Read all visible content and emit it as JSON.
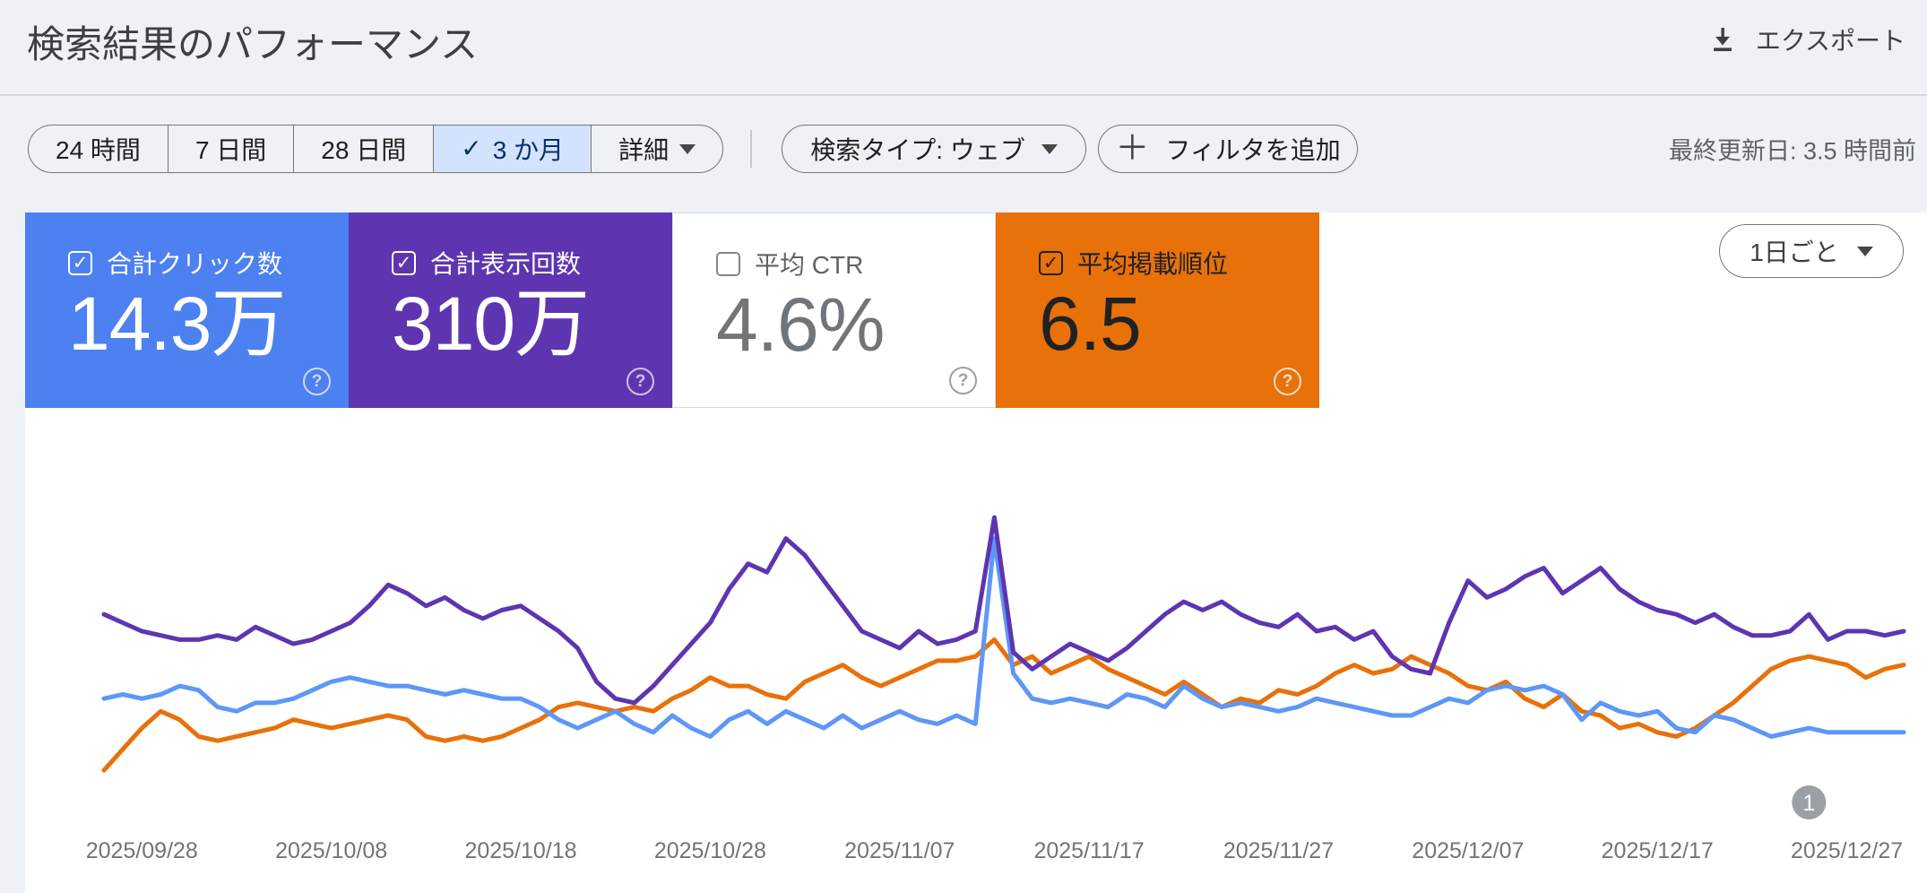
{
  "header": {
    "title": "検索結果のパフォーマンス",
    "export_label": "エクスポート"
  },
  "toolbar": {
    "date_ranges": [
      {
        "label": "24 時間",
        "selected": false
      },
      {
        "label": "7 日間",
        "selected": false
      },
      {
        "label": "28 日間",
        "selected": false
      },
      {
        "label": "3 か月",
        "selected": true
      },
      {
        "label": "詳細",
        "selected": false,
        "dropdown": true
      }
    ],
    "search_type_label": "検索タイプ: ウェブ",
    "add_filter_label": "フィルタを追加",
    "last_updated": "最終更新日: 3.5 時間前"
  },
  "icons": {
    "check": "✓",
    "plus": "＋",
    "help": "?"
  },
  "metrics": [
    {
      "label": "合計クリック数",
      "value": "14.3万",
      "checked": true,
      "card_color": "#4d80f0",
      "label_color": "#ffffff",
      "value_color": "#ffffff",
      "checkbox_color": "#ffffff",
      "help_color": "rgba(255,255,255,0.7)",
      "bordered": false
    },
    {
      "label": "合計表示回数",
      "value": "310万",
      "checked": true,
      "card_color": "#5e35b1",
      "label_color": "#ffffff",
      "value_color": "#ffffff",
      "checkbox_color": "#ffffff",
      "help_color": "rgba(255,255,255,0.7)",
      "bordered": false
    },
    {
      "label": "平均 CTR",
      "value": "4.6%",
      "checked": false,
      "card_color": "#ffffff",
      "label_color": "#5f6368",
      "value_color": "#70757a",
      "checkbox_color": "#80868b",
      "help_color": "#9aa0a6",
      "bordered": true
    },
    {
      "label": "平均掲載順位",
      "value": "6.5",
      "checked": true,
      "card_color": "#e8710a",
      "label_color": "#202124",
      "value_color": "#202124",
      "checkbox_color": "#202124",
      "help_color": "rgba(255,255,255,0.75)",
      "bordered": false
    }
  ],
  "granularity": {
    "label": "1日ごと"
  },
  "chart_data": {
    "type": "line",
    "note": "No y-axis shown in UI; each series is independently scaled. Values are relative heights 0-100 read off the plot. One point per day, day 0 = 2025/09/26.",
    "x_tick_labels": [
      "2025/09/28",
      "2025/10/08",
      "2025/10/18",
      "2025/10/28",
      "2025/11/07",
      "2025/11/17",
      "2025/11/27",
      "2025/12/07",
      "2025/12/17",
      "2025/12/27"
    ],
    "x_tick_day_indices": [
      2,
      12,
      22,
      32,
      42,
      52,
      62,
      72,
      82,
      92
    ],
    "ylim": [
      0,
      100
    ],
    "grid": false,
    "legend": "color-linked to metric cards above",
    "series": [
      {
        "name": "合計クリック数",
        "color": "#5e97f6",
        "values": [
          24,
          25,
          24,
          25,
          27,
          26,
          22,
          21,
          23,
          23,
          24,
          26,
          28,
          29,
          28,
          27,
          27,
          26,
          25,
          26,
          25,
          24,
          24,
          22,
          19,
          17,
          19,
          21,
          18,
          16,
          20,
          17,
          15,
          19,
          21,
          18,
          21,
          19,
          17,
          20,
          17,
          19,
          21,
          19,
          18,
          20,
          18,
          62,
          30,
          24,
          23,
          24,
          23,
          22,
          25,
          24,
          22,
          27,
          24,
          22,
          23,
          22,
          21,
          22,
          24,
          23,
          22,
          21,
          20,
          20,
          22,
          24,
          23,
          26,
          27,
          26,
          27,
          25,
          19,
          23,
          21,
          20,
          21,
          17,
          16,
          20,
          19,
          17,
          15,
          16,
          17,
          16,
          16,
          16,
          16,
          16
        ]
      },
      {
        "name": "合計表示回数",
        "color": "#5e35b1",
        "values": [
          44,
          42,
          40,
          39,
          38,
          38,
          39,
          38,
          41,
          39,
          37,
          38,
          40,
          42,
          46,
          51,
          49,
          46,
          48,
          45,
          43,
          45,
          46,
          43,
          40,
          36,
          28,
          24,
          23,
          27,
          32,
          37,
          42,
          50,
          56,
          54,
          62,
          58,
          52,
          46,
          40,
          38,
          36,
          40,
          37,
          38,
          40,
          67,
          35,
          31,
          34,
          37,
          35,
          33,
          36,
          40,
          44,
          47,
          45,
          47,
          44,
          42,
          41,
          44,
          40,
          41,
          38,
          40,
          34,
          31,
          30,
          42,
          52,
          48,
          50,
          53,
          55,
          49,
          52,
          55,
          50,
          47,
          45,
          44,
          42,
          44,
          41,
          39,
          39,
          40,
          44,
          38,
          40,
          40,
          39,
          40
        ]
      },
      {
        "name": "平均掲載順位",
        "color": "#e8710a",
        "values": [
          7,
          12,
          17,
          21,
          19,
          15,
          14,
          15,
          16,
          17,
          19,
          18,
          17,
          18,
          19,
          20,
          19,
          15,
          14,
          15,
          14,
          15,
          17,
          19,
          22,
          23,
          22,
          21,
          22,
          21,
          24,
          26,
          29,
          27,
          27,
          25,
          24,
          28,
          30,
          32,
          29,
          27,
          29,
          31,
          33,
          33,
          34,
          38,
          32,
          34,
          30,
          32,
          34,
          31,
          29,
          27,
          25,
          28,
          25,
          22,
          24,
          23,
          26,
          25,
          27,
          30,
          32,
          30,
          31,
          34,
          32,
          30,
          27,
          26,
          28,
          24,
          22,
          25,
          21,
          20,
          17,
          18,
          16,
          15,
          17,
          20,
          23,
          27,
          31,
          33,
          34,
          33,
          32,
          29,
          31,
          32
        ]
      }
    ],
    "annotation": {
      "label": "1",
      "day_index": 90,
      "color": "#9aa0a6"
    }
  }
}
